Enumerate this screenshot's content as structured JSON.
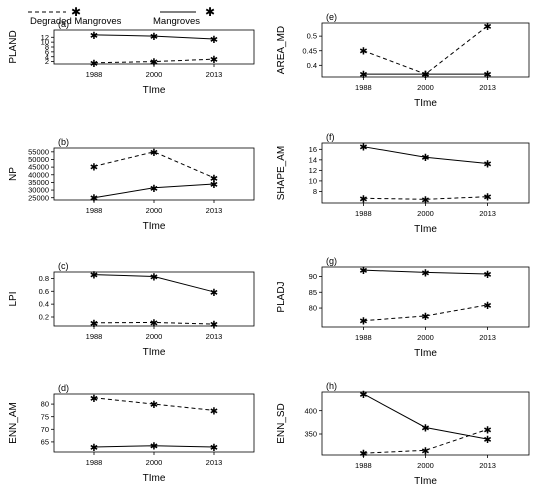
{
  "legend": {
    "items": [
      {
        "label": "Degraded Mangroves",
        "dash": "dashed"
      },
      {
        "label": "Mangroves",
        "dash": "solid"
      }
    ]
  },
  "chart_data": [
    {
      "type": "line",
      "panel": "(a)",
      "xlabel": "TIme",
      "ylabel": "PLAND",
      "categories": [
        "1988",
        "2000",
        "2013"
      ],
      "ylim": [
        1,
        15
      ],
      "yticks": [
        2,
        4,
        6,
        8,
        10,
        12
      ],
      "series": [
        {
          "name": "Degraded Mangroves",
          "values": [
            1.5,
            2.0,
            3.0
          ]
        },
        {
          "name": "Mangroves",
          "values": [
            13.0,
            12.5,
            11.3
          ]
        }
      ]
    },
    {
      "type": "line",
      "panel": "(b)",
      "xlabel": "TIme",
      "ylabel": "NP",
      "categories": [
        "1988",
        "2000",
        "2013"
      ],
      "ylim": [
        23500,
        57500
      ],
      "yticks": [
        25000,
        30000,
        35000,
        40000,
        45000,
        50000,
        55000
      ],
      "series": [
        {
          "name": "Degraded Mangroves",
          "values": [
            45500,
            55000,
            38000
          ]
        },
        {
          "name": "Mangroves",
          "values": [
            25000,
            31500,
            34000
          ]
        }
      ]
    },
    {
      "type": "line",
      "panel": "(c)",
      "xlabel": "TIme",
      "ylabel": "LPI",
      "categories": [
        "1988",
        "2000",
        "2013"
      ],
      "ylim": [
        0.06,
        0.9
      ],
      "yticks": [
        0.2,
        0.4,
        0.6,
        0.8
      ],
      "series": [
        {
          "name": "Degraded Mangroves",
          "values": [
            0.11,
            0.115,
            0.09
          ]
        },
        {
          "name": "Mangroves",
          "values": [
            0.86,
            0.83,
            0.59
          ]
        }
      ]
    },
    {
      "type": "line",
      "panel": "(d)",
      "xlabel": "TIme",
      "ylabel": "ENN_AM",
      "categories": [
        "1988",
        "2000",
        "2013"
      ],
      "ylim": [
        61,
        84
      ],
      "yticks": [
        65,
        70,
        75,
        80
      ],
      "series": [
        {
          "name": "Degraded Mangroves",
          "values": [
            82.5,
            80.0,
            77.5
          ]
        },
        {
          "name": "Mangroves",
          "values": [
            63.0,
            63.5,
            63.0
          ]
        }
      ]
    },
    {
      "type": "line",
      "panel": "(e)",
      "xlabel": "TIme",
      "ylabel": "AREA_MD",
      "categories": [
        "1988",
        "2000",
        "2013"
      ],
      "ylim": [
        0.36,
        0.545
      ],
      "yticks": [
        0.4,
        0.45,
        0.5
      ],
      "series": [
        {
          "name": "Degraded Mangroves",
          "values": [
            0.45,
            0.37,
            0.535
          ]
        },
        {
          "name": "Mangroves",
          "values": [
            0.37,
            0.37,
            0.37
          ]
        }
      ]
    },
    {
      "type": "line",
      "panel": "(f)",
      "xlabel": "TIme",
      "ylabel": "SHAPE_AM",
      "categories": [
        "1988",
        "2000",
        "2013"
      ],
      "ylim": [
        5.8,
        17.2
      ],
      "yticks": [
        8,
        10,
        12,
        14,
        16
      ],
      "series": [
        {
          "name": "Degraded Mangroves",
          "values": [
            6.7,
            6.5,
            7.0
          ]
        },
        {
          "name": "Mangroves",
          "values": [
            16.5,
            14.5,
            13.3
          ]
        }
      ]
    },
    {
      "type": "line",
      "panel": "(g)",
      "xlabel": "TIme",
      "ylabel": "PLADJ",
      "categories": [
        "1988",
        "2000",
        "2013"
      ],
      "ylim": [
        74,
        93
      ],
      "yticks": [
        80,
        85,
        90
      ],
      "series": [
        {
          "name": "Degraded Mangroves",
          "values": [
            76.0,
            77.5,
            81.0
          ]
        },
        {
          "name": "Mangroves",
          "values": [
            92.0,
            91.3,
            90.8
          ]
        }
      ]
    },
    {
      "type": "line",
      "panel": "(h)",
      "xlabel": "TIme",
      "ylabel": "ENN_SD",
      "categories": [
        "1988",
        "2000",
        "2013"
      ],
      "ylim": [
        305,
        440
      ],
      "yticks": [
        350,
        400
      ],
      "series": [
        {
          "name": "Degraded Mangroves",
          "values": [
            309,
            315,
            360
          ]
        },
        {
          "name": "Mangroves",
          "values": [
            436,
            364,
            339
          ]
        }
      ]
    }
  ]
}
